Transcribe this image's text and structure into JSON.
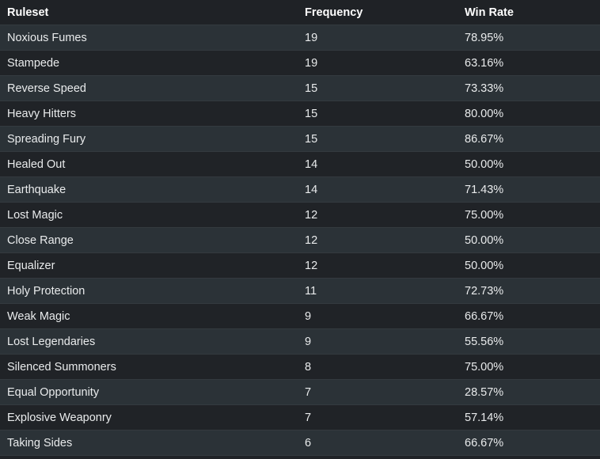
{
  "table": {
    "header": [
      "Ruleset",
      "Frequency",
      "Win Rate"
    ],
    "rows": [
      [
        "Noxious Fumes",
        "19",
        "78.95%"
      ],
      [
        "Stampede",
        "19",
        "63.16%"
      ],
      [
        "Reverse Speed",
        "15",
        "73.33%"
      ],
      [
        "Heavy Hitters",
        "15",
        "80.00%"
      ],
      [
        "Spreading Fury",
        "15",
        "86.67%"
      ],
      [
        "Healed Out",
        "14",
        "50.00%"
      ],
      [
        "Earthquake",
        "14",
        "71.43%"
      ],
      [
        "Lost Magic",
        "12",
        "75.00%"
      ],
      [
        "Close Range",
        "12",
        "50.00%"
      ],
      [
        "Equalizer",
        "12",
        "50.00%"
      ],
      [
        "Holy Protection",
        "11",
        "72.73%"
      ],
      [
        "Weak Magic",
        "9",
        "66.67%"
      ],
      [
        "Lost Legendaries",
        "9",
        "55.56%"
      ],
      [
        "Silenced Summoners",
        "8",
        "75.00%"
      ],
      [
        "Equal Opportunity",
        "7",
        "28.57%"
      ],
      [
        "Explosive Weaponry",
        "7",
        "57.14%"
      ],
      [
        "Taking Sides",
        "6",
        "66.67%"
      ]
    ]
  }
}
